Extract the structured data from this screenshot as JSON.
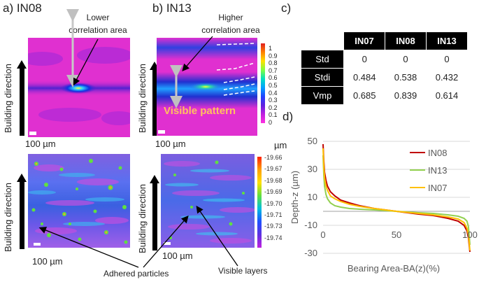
{
  "panels": {
    "a": {
      "label": "a) IN08"
    },
    "b": {
      "label": "b) IN13"
    },
    "c": {
      "label": "c)"
    },
    "d": {
      "label": "d)"
    }
  },
  "building_direction": "Building direction",
  "scale_bar": "100 µm",
  "annotations": {
    "lower_correlation": "Lower correlation area",
    "higher_correlation": "Higher correlation area",
    "visible_pattern": "Visible  pattern",
    "adhered_particles": "Adhered particles",
    "visible_layers": "Visible layers"
  },
  "colorbar_correlation": {
    "ticks": [
      "1",
      "0.9",
      "0.8",
      "0.7",
      "0.6",
      "0.5",
      "0.4",
      "0.3",
      "0.2",
      "0.1",
      "0"
    ]
  },
  "colorbar_height": {
    "unit": "µm",
    "ticks": [
      "-19.66",
      "-19.67",
      "-19.68",
      "-19.69",
      "-19.70",
      "-19.71",
      "-19.73",
      "-19.74"
    ]
  },
  "table": {
    "columns": [
      "IN07",
      "IN08",
      "IN13"
    ],
    "rows": [
      {
        "label": "Std",
        "values": [
          "0",
          "0",
          "0"
        ]
      },
      {
        "label": "Stdi",
        "values": [
          "0.484",
          "0.538",
          "0.432"
        ]
      },
      {
        "label": "Vmp",
        "values": [
          "0.685",
          "0.839",
          "0.614"
        ]
      }
    ]
  },
  "chart_data": {
    "type": "line",
    "title": "",
    "xlabel": "Bearing Area-BA(z)(%)",
    "ylabel": "Depth-z (µm)",
    "xlim": [
      0,
      100
    ],
    "ylim": [
      -30,
      50
    ],
    "xticks": [
      0,
      50,
      100
    ],
    "yticks": [
      -30,
      -10,
      10,
      30,
      50
    ],
    "legend_position": "top-right",
    "series": [
      {
        "name": "IN08",
        "color": "#c00000",
        "x": [
          0,
          0.5,
          1,
          2,
          3,
          5,
          8,
          12,
          18,
          25,
          35,
          50,
          65,
          75,
          85,
          92,
          96,
          98,
          99,
          99.5,
          100
        ],
        "y": [
          48,
          36,
          28,
          22,
          18,
          14,
          11,
          8,
          6,
          4,
          2,
          0,
          -2,
          -3,
          -5,
          -7,
          -10,
          -14,
          -19,
          -24,
          -29
        ]
      },
      {
        "name": "IN13",
        "color": "#92d050",
        "x": [
          0,
          0.5,
          1,
          2,
          3,
          5,
          8,
          12,
          18,
          25,
          35,
          50,
          65,
          75,
          85,
          92,
          96,
          98,
          99,
          99.5,
          100
        ],
        "y": [
          40,
          26,
          18,
          12,
          9,
          6,
          4,
          3,
          2,
          1.5,
          1,
          0,
          -1,
          -1.5,
          -2.5,
          -3.5,
          -5,
          -7,
          -11,
          -17,
          -24
        ]
      },
      {
        "name": "IN07",
        "color": "#ffc000",
        "x": [
          0,
          0.5,
          1,
          2,
          3,
          5,
          8,
          12,
          18,
          25,
          35,
          50,
          65,
          75,
          85,
          92,
          96,
          98,
          99,
          99.5,
          100
        ],
        "y": [
          45,
          32,
          24,
          18,
          15,
          11,
          9,
          7,
          5,
          3.5,
          2,
          0,
          -1.5,
          -2.5,
          -4,
          -5.5,
          -8,
          -12,
          -17,
          -22,
          -28
        ]
      }
    ]
  }
}
